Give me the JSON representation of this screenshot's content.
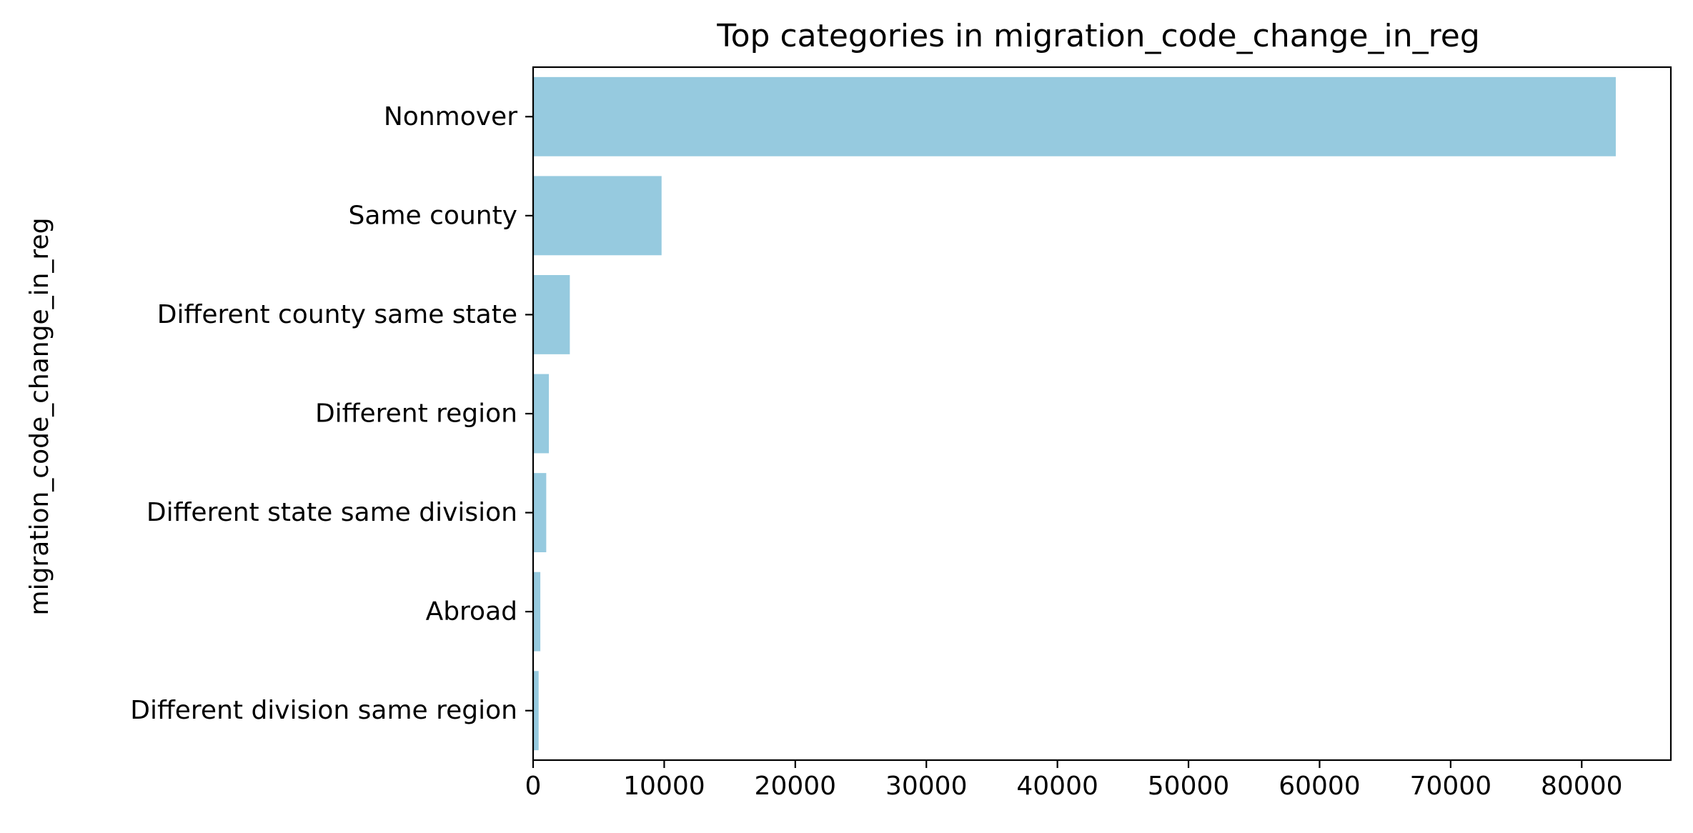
{
  "chart_data": {
    "type": "bar",
    "orientation": "horizontal",
    "title": "Top categories in migration_code_change_in_reg",
    "xlabel": "",
    "ylabel": "migration_code_change_in_reg",
    "categories": [
      "Nonmover",
      "Same county",
      "Different county same state",
      "Different region",
      "Different state same division",
      "Abroad",
      "Different division same region"
    ],
    "values": [
      82600,
      9800,
      2800,
      1200,
      1000,
      550,
      420
    ],
    "xlim": [
      0,
      86800
    ],
    "xticks": [
      0,
      10000,
      20000,
      30000,
      40000,
      50000,
      60000,
      70000,
      80000
    ],
    "xtick_labels": [
      "0",
      "10000",
      "20000",
      "30000",
      "40000",
      "50000",
      "60000",
      "70000",
      "80000"
    ],
    "grid": false,
    "legend": "none",
    "bar_color": "#96cadf"
  }
}
